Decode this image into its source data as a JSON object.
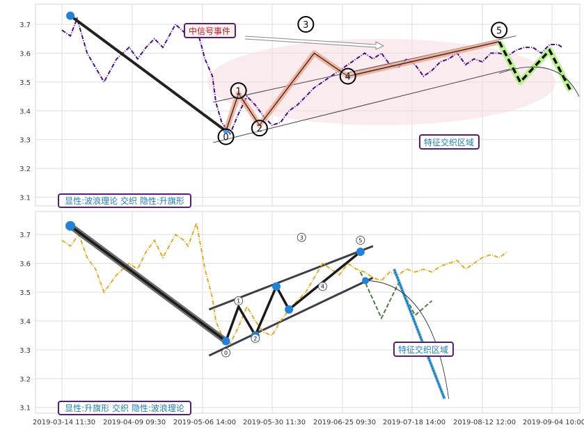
{
  "chart_data": [
    {
      "type": "line",
      "panel": "top",
      "ylim": [
        3.07,
        3.77
      ],
      "yticks": [
        3.1,
        3.2,
        3.3,
        3.4,
        3.5,
        3.6,
        3.7
      ],
      "grid": true,
      "colors": {
        "price": "#4b0c91",
        "wave_main": "#1a1a1a",
        "wave_highlight": "#f4a58a",
        "future_dash": "#111111",
        "future_glow": "#b6f08a",
        "ellipse": "#f6dde2"
      },
      "series": [
        {
          "role": "price",
          "style": "dash-dot",
          "x": [
            0.0,
            1.0,
            1.8,
            3.0,
            4.0,
            5.0,
            6.5,
            8.0,
            9.0,
            10.0,
            11.0,
            12.0,
            13.5,
            15.0,
            16.0,
            17.0,
            17.9,
            18.3,
            19.0,
            20.0,
            21.0,
            22.0,
            23.0,
            24.0,
            25.0,
            26.0,
            27.0,
            28.0,
            29.0,
            30.0,
            31.0,
            32.0,
            33.0,
            34.0,
            35.0,
            36.0,
            37.0,
            38.0,
            39.0,
            40.0,
            41.0,
            42.0,
            43.0,
            44.0,
            45.0,
            46.0,
            47.0,
            48.0,
            49.0,
            50.0,
            51.0,
            52.0,
            53.0,
            54.0,
            55.0,
            56.0,
            57.0,
            58.0,
            59.0,
            59.5
          ],
          "y": [
            3.68,
            3.66,
            3.72,
            3.6,
            3.55,
            3.5,
            3.58,
            3.62,
            3.58,
            3.62,
            3.65,
            3.62,
            3.7,
            3.66,
            3.69,
            3.58,
            3.52,
            3.43,
            3.36,
            3.32,
            3.39,
            3.45,
            3.42,
            3.38,
            3.35,
            3.36,
            3.4,
            3.42,
            3.45,
            3.48,
            3.5,
            3.52,
            3.54,
            3.56,
            3.58,
            3.6,
            3.58,
            3.6,
            3.56,
            3.55,
            3.58,
            3.56,
            3.52,
            3.54,
            3.57,
            3.58,
            3.6,
            3.56,
            3.58,
            3.57,
            3.6,
            3.6,
            3.59,
            3.61,
            3.62,
            3.62,
            3.6,
            3.63,
            3.63,
            3.62
          ]
        },
        {
          "role": "wave",
          "x": [
            1.0,
            19.5,
            21.0,
            23.5,
            30.0,
            34.0,
            52.0
          ],
          "y": [
            3.73,
            3.33,
            3.46,
            3.35,
            3.6,
            3.52,
            3.64
          ]
        },
        {
          "role": "forecast",
          "style": "dashed",
          "x": [
            52.0,
            54.5,
            58.0,
            60.5
          ],
          "y": [
            3.64,
            3.5,
            3.61,
            3.47
          ]
        }
      ],
      "wave_labels": [
        "0",
        "1",
        "2",
        "3",
        "4",
        "5"
      ],
      "wave_label_points": {
        "x": [
          19.5,
          21.0,
          23.5,
          29.0,
          34.0,
          52.0
        ],
        "y": [
          3.31,
          3.47,
          3.34,
          3.7,
          3.52,
          3.68
        ]
      },
      "channel_lines": [
        {
          "x": [
            18.0,
            54.0
          ],
          "y": [
            3.43,
            3.66
          ]
        },
        {
          "x": [
            18.0,
            54.0
          ],
          "y": [
            3.29,
            3.55
          ]
        }
      ],
      "arc": {
        "x": [
          52.0,
          56.0,
          59.0,
          61.5
        ],
        "y": [
          3.53,
          3.56,
          3.54,
          3.45
        ]
      },
      "annotations": [
        "中信号事件",
        "特征交织区域"
      ],
      "label_box": "显性:波浪理论 交织 隐性:升旗形"
    },
    {
      "type": "line",
      "panel": "bottom",
      "ylim": [
        3.08,
        3.78
      ],
      "yticks": [
        3.1,
        3.2,
        3.3,
        3.4,
        3.5,
        3.6,
        3.7
      ],
      "grid": true,
      "xlabels": [
        "2019-03-14 11:30",
        "2019-04-09 09:30",
        "2019-05-06 14:00",
        "2019-05-30 11:30",
        "2019-06-25 09:30",
        "2019-07-18 14:00",
        "2019-08-12 12:00",
        "2019-09-04 10:00"
      ],
      "colors": {
        "price": "#e3aa24",
        "wave_main": "#1a1a1a",
        "channel": "#3d3d4a",
        "node": "#2283d6",
        "green_dash": "#4f7a3e",
        "blue_line": "#3fa0d8"
      },
      "series": [
        {
          "role": "price",
          "style": "dash-dot",
          "x": [
            0.0,
            1.0,
            2.0,
            3.0,
            4.0,
            5.0,
            6.5,
            8.0,
            9.0,
            10.0,
            11.0,
            12.0,
            13.5,
            14.5,
            15.0,
            16.0,
            17.0,
            17.9,
            18.3,
            19.0,
            20.0,
            21.0,
            22.0,
            23.0,
            24.0,
            25.0,
            26.0,
            27.0,
            28.0,
            29.0,
            30.0,
            31.0,
            32.0,
            33.0,
            34.0,
            35.0,
            36.0,
            37.0,
            38.0,
            39.0,
            40.0,
            41.0,
            42.0,
            43.0,
            44.0,
            45.0,
            46.0,
            47.0,
            48.0,
            49.0,
            50.0,
            51.0,
            52.0,
            53.0
          ],
          "y": [
            3.68,
            3.66,
            3.7,
            3.62,
            3.58,
            3.5,
            3.56,
            3.6,
            3.58,
            3.64,
            3.68,
            3.62,
            3.7,
            3.68,
            3.66,
            3.74,
            3.58,
            3.48,
            3.4,
            3.35,
            3.32,
            3.38,
            3.45,
            3.4,
            3.36,
            3.35,
            3.4,
            3.44,
            3.47,
            3.5,
            3.55,
            3.6,
            3.58,
            3.56,
            3.6,
            3.58,
            3.57,
            3.55,
            3.54,
            3.57,
            3.56,
            3.58,
            3.57,
            3.58,
            3.57,
            3.59,
            3.6,
            3.61,
            3.58,
            3.6,
            3.62,
            3.63,
            3.62,
            3.64
          ]
        },
        {
          "role": "wave",
          "x": [
            1.0,
            19.5,
            21.0,
            23.0,
            25.5,
            27.0,
            35.5
          ],
          "y": [
            3.73,
            3.33,
            3.45,
            3.35,
            3.52,
            3.44,
            3.64
          ]
        },
        {
          "role": "forecast",
          "style": "dashed",
          "x": [
            35.5,
            38.0,
            40.0,
            42.0,
            44.0
          ],
          "y": [
            3.57,
            3.41,
            3.53,
            3.42,
            3.47
          ]
        },
        {
          "role": "forecast-long",
          "x": [
            39.5,
            45.5
          ],
          "y": [
            3.58,
            3.13
          ]
        }
      ],
      "wave_labels": [
        "0",
        "1",
        "2",
        "3",
        "4",
        "5"
      ],
      "wave_label_points": {
        "x": [
          19.5,
          21.0,
          23.0,
          28.5,
          31.0,
          35.5
        ],
        "y": [
          3.29,
          3.47,
          3.34,
          3.69,
          3.52,
          3.68
        ]
      },
      "channel_lines": [
        {
          "x": [
            17.5,
            37.0
          ],
          "y": [
            3.44,
            3.66
          ]
        },
        {
          "x": [
            17.5,
            37.0
          ],
          "y": [
            3.28,
            3.55
          ]
        }
      ],
      "arc": {
        "x": [
          36.0,
          40.0,
          44.0,
          46.0
        ],
        "y": [
          3.54,
          3.5,
          3.32,
          3.13
        ]
      },
      "annotations": [
        "特征交织区域"
      ],
      "label_box": "显性:升旗形 交织 隐性:波浪理论"
    }
  ]
}
